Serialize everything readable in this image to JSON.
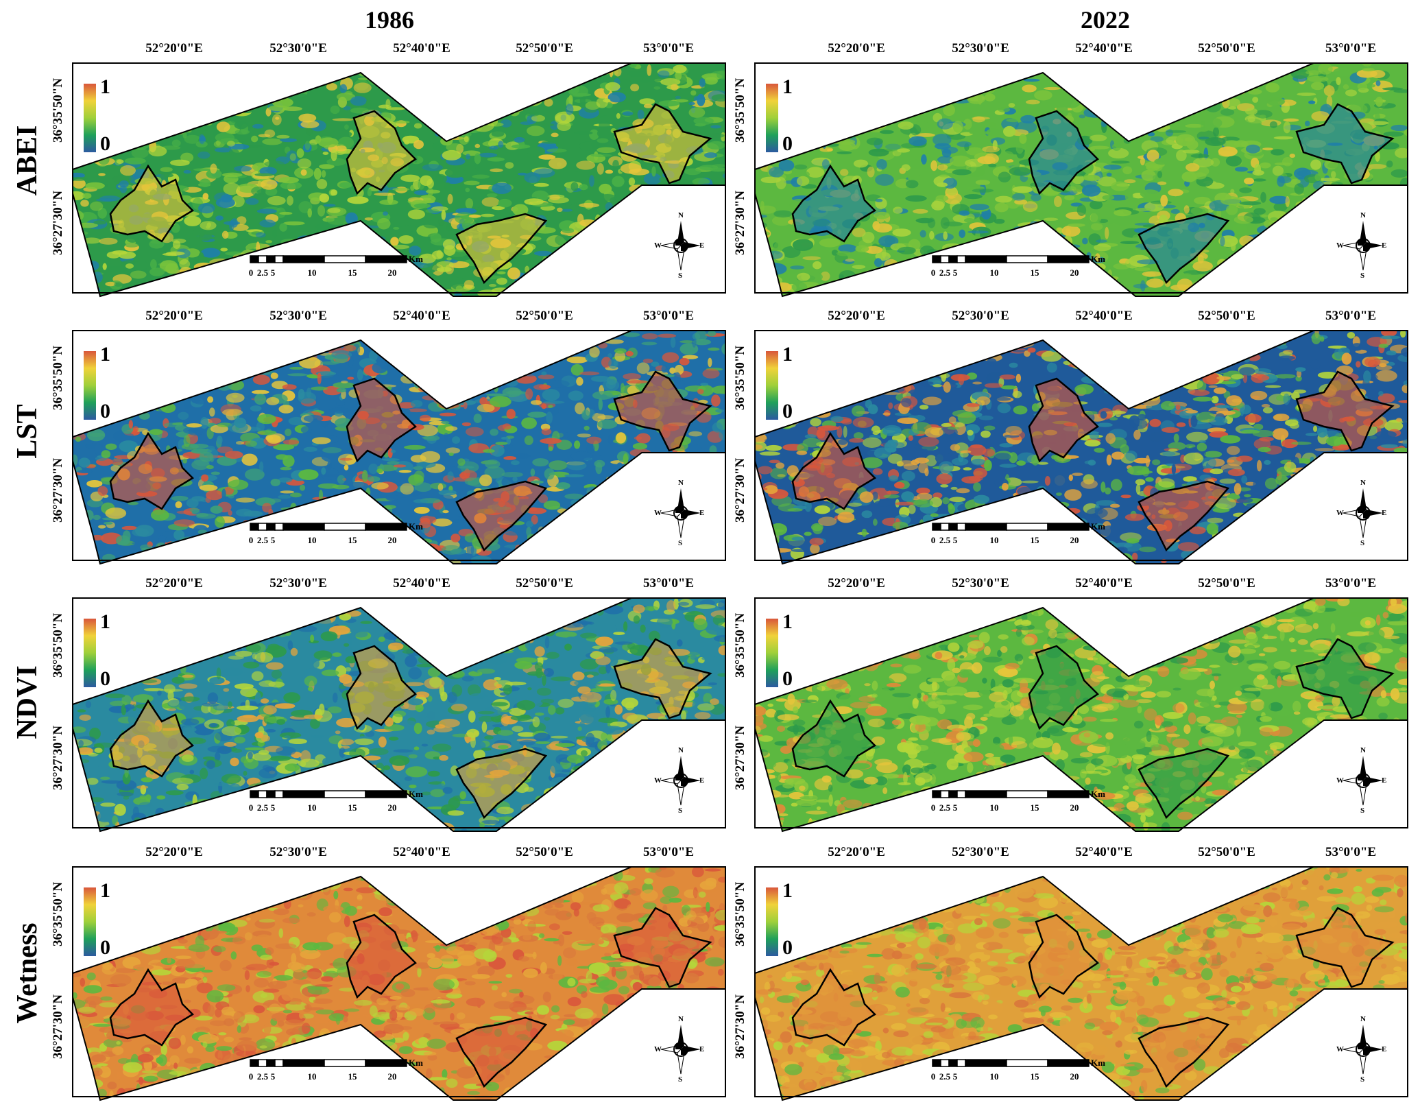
{
  "columns": [
    "1986",
    "2022"
  ],
  "rows": [
    "ABEI",
    "LST",
    "NDVI",
    "Wetness"
  ],
  "longitudes": [
    "52°20'0\"E",
    "52°30'0\"E",
    "52°40'0\"E",
    "52°50'0\"E",
    "53°0'0\"E"
  ],
  "latitudes": [
    "36°35'50\"N",
    "36°27'30\"N"
  ],
  "legend": {
    "max": "1",
    "min": "0"
  },
  "scale_bar": {
    "ticks": [
      "0",
      "2.5",
      "5",
      "10",
      "15",
      "20"
    ],
    "unit": "Km"
  },
  "compass": {
    "n": "N",
    "s": "S",
    "e": "E",
    "w": "W"
  },
  "colors": {
    "low": "#2c5aa0",
    "mid_low": "#1fa05a",
    "mid": "#9fd03a",
    "mid_high": "#f0d23a",
    "high": "#d9573b"
  },
  "panel_palettes": {
    "ABEI-1986": [
      "#2d9a4a",
      "#49b046",
      "#7cc43b",
      "#1f7fa8",
      "#b5d63a",
      "#e6c53b"
    ],
    "ABEI-2022": [
      "#5cb840",
      "#7cc43b",
      "#a6d23d",
      "#2d9a4a",
      "#e0c43a",
      "#1f7fa8"
    ],
    "LST-1986": [
      "#1f6fa8",
      "#2a8aa0",
      "#3ea078",
      "#5cb840",
      "#e6c53b",
      "#d9573b"
    ],
    "LST-2022": [
      "#1f5a9a",
      "#2a8aa0",
      "#5cb840",
      "#b5d63a",
      "#e6a53b",
      "#d9573b"
    ],
    "NDVI-1986": [
      "#2a8aa0",
      "#2d9a4a",
      "#5cb840",
      "#1f6fa8",
      "#b5d63a",
      "#e6a53b"
    ],
    "NDVI-2022": [
      "#5cb840",
      "#8fcb3c",
      "#b5d63a",
      "#e6c53b",
      "#e08a3a",
      "#2d9a4a"
    ],
    "Wetness-1986": [
      "#e08a3a",
      "#d9773b",
      "#e6a53b",
      "#b5d63a",
      "#5cb840",
      "#d9573b"
    ],
    "Wetness-2022": [
      "#e0a03a",
      "#e6b83b",
      "#d9773b",
      "#b5d63a",
      "#5cb840",
      "#e08a3a"
    ]
  }
}
